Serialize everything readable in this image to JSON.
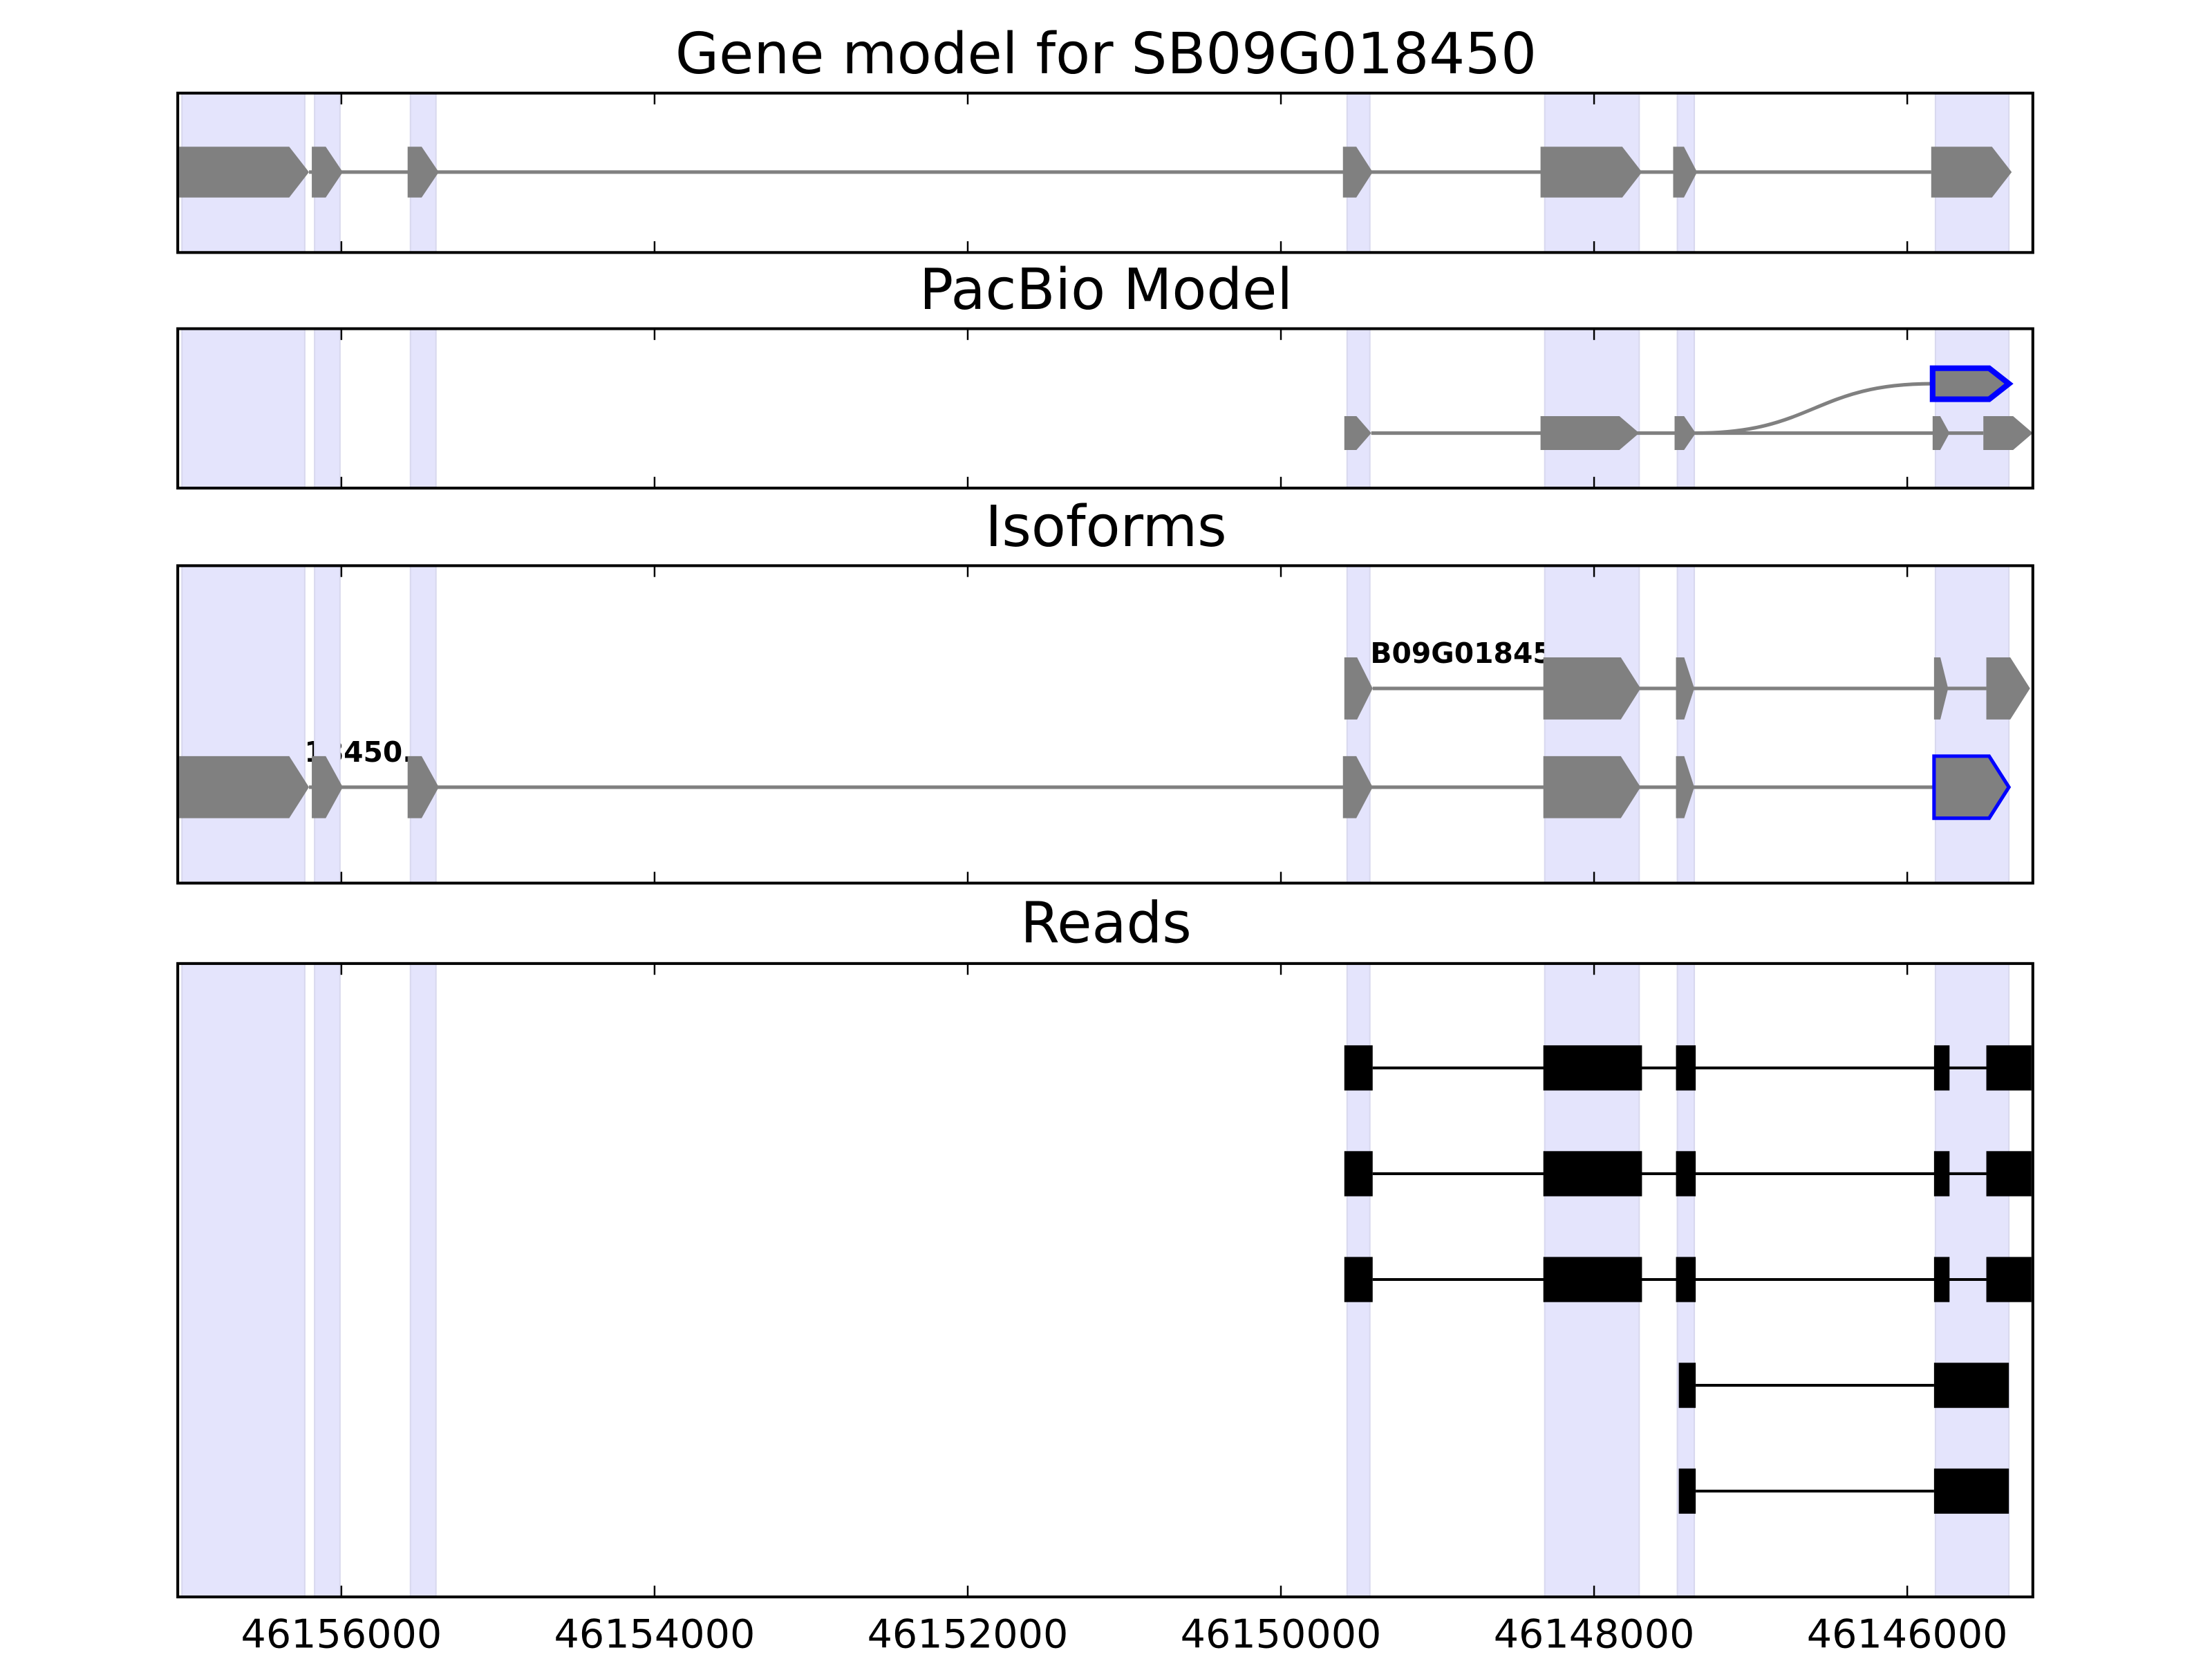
{
  "chart_data": {
    "type": "gene-track",
    "xlim": [
      46157045,
      46145198
    ],
    "x_reversed": true,
    "xticks": [
      46156000,
      46154000,
      46152000,
      46150000,
      46148000,
      46146000
    ],
    "xtick_labels": [
      "46156000",
      "46154000",
      "46152000",
      "46150000",
      "46148000",
      "46146000"
    ],
    "colors": {
      "shade": "#e4e4fc",
      "exon": "#808080",
      "highlight": "#0000ff",
      "read": "#000000"
    },
    "shaded_regions": [
      [
        46157018,
        46156234
      ],
      [
        46156171,
        46156009
      ],
      [
        46155559,
        46155396
      ],
      [
        46149577,
        46149432
      ],
      [
        46148315,
        46147712
      ],
      [
        46147468,
        46147360
      ],
      [
        46145820,
        46145351
      ]
    ],
    "panels": [
      {
        "title": "Gene model for SB09G018450",
        "kind": "model",
        "rows": [
          {
            "label": "",
            "exons": [
              [
                46157036,
                46156207
              ],
              [
                46156189,
                46155991
              ],
              [
                46155577,
                46155378
              ],
              [
                46149604,
                46149414
              ],
              [
                46148342,
                46147694
              ],
              [
                46147495,
                46147342
              ],
              [
                46145847,
                46145333
              ]
            ],
            "highlight": []
          }
        ]
      },
      {
        "title": "PacBio Model",
        "kind": "model",
        "rows": [
          {
            "label": "",
            "exons": [
              [
                46145838,
                46145351
              ]
            ],
            "highlight": [
              0
            ],
            "connect_from": [
              46147352,
              1
            ]
          },
          {
            "label": "",
            "exons": [
              [
                46149595,
                46149423
              ],
              [
                46148342,
                46147712
              ],
              [
                46147486,
                46147351
              ],
              [
                46145838,
                46145730
              ],
              [
                46145514,
                46145198
              ]
            ],
            "highlight": []
          }
        ]
      },
      {
        "title": "Isoforms",
        "kind": "model",
        "rows": [
          {
            "label": "SB09G018450_1",
            "exons": [
              [
                46149595,
                46149414
              ],
              [
                46148324,
                46147703
              ],
              [
                46147477,
                46147360
              ],
              [
                46145829,
                46145739
              ],
              [
                46145495,
                46145216
              ]
            ],
            "highlight": []
          },
          {
            "label": "SB09G018450.1",
            "exons": [
              [
                46157036,
                46156207
              ],
              [
                46156189,
                46155991
              ],
              [
                46155577,
                46155378
              ],
              [
                46149604,
                46149414
              ],
              [
                46148324,
                46147703
              ],
              [
                46147477,
                46147360
              ],
              [
                46145829,
                46145351
              ]
            ],
            "highlight": [
              6
            ]
          }
        ]
      },
      {
        "title": "Reads",
        "kind": "reads",
        "rows": [
          {
            "label": "",
            "exons": [
              [
                46149595,
                46149414
              ],
              [
                46148324,
                46147694
              ],
              [
                46147477,
                46147351
              ],
              [
                46145829,
                46145730
              ],
              [
                46145495,
                46145207
              ]
            ]
          },
          {
            "label": "",
            "exons": [
              [
                46149595,
                46149414
              ],
              [
                46148324,
                46147694
              ],
              [
                46147477,
                46147351
              ],
              [
                46145829,
                46145730
              ],
              [
                46145495,
                46145207
              ]
            ]
          },
          {
            "label": "",
            "exons": [
              [
                46149595,
                46149414
              ],
              [
                46148324,
                46147694
              ],
              [
                46147477,
                46147351
              ],
              [
                46145829,
                46145730
              ],
              [
                46145495,
                46145207
              ]
            ]
          },
          {
            "label": "",
            "exons": [
              [
                46147459,
                46147351
              ],
              [
                46145829,
                46145351
              ]
            ]
          },
          {
            "label": "",
            "exons": [
              [
                46147459,
                46147351
              ],
              [
                46145829,
                46145351
              ]
            ]
          }
        ]
      }
    ]
  }
}
